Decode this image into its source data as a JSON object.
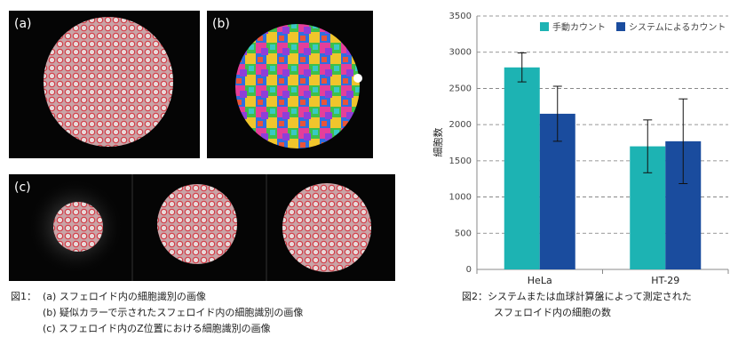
{
  "panels": [
    "(a)",
    "(b)",
    "(c)"
  ],
  "figure_1_caption": [
    "図1：",
    "(a) スフェロイド内の細胞識別の画像",
    "(b) 疑似カラーで示されたスフェロイド内の細胞識別の画像",
    "(c) スフェロイド内のZ位置における細胞識別の画像"
  ],
  "figure_2_caption": [
    "図2：システムまたは血球計算盤によって測定された",
    "スフェロイド内の細胞の数"
  ],
  "chart_data": {
    "type": "bar",
    "y_label": "細胞数",
    "categories": [
      "HeLa",
      "HT-29"
    ],
    "series": [
      {
        "name": "手動カウント",
        "color": "#1db3b3",
        "values": [
          2790,
          1700
        ],
        "errors": [
          200,
          365
        ]
      },
      {
        "name": "システムによるカウント",
        "color": "#1a4c9e",
        "values": [
          2150,
          1770
        ],
        "errors": [
          380,
          585
        ]
      }
    ],
    "ylim": [
      0,
      3500
    ],
    "yticks": [
      0,
      500,
      1000,
      1500,
      2000,
      2500,
      3000,
      3500
    ],
    "grid": true,
    "legend": "top-right"
  }
}
